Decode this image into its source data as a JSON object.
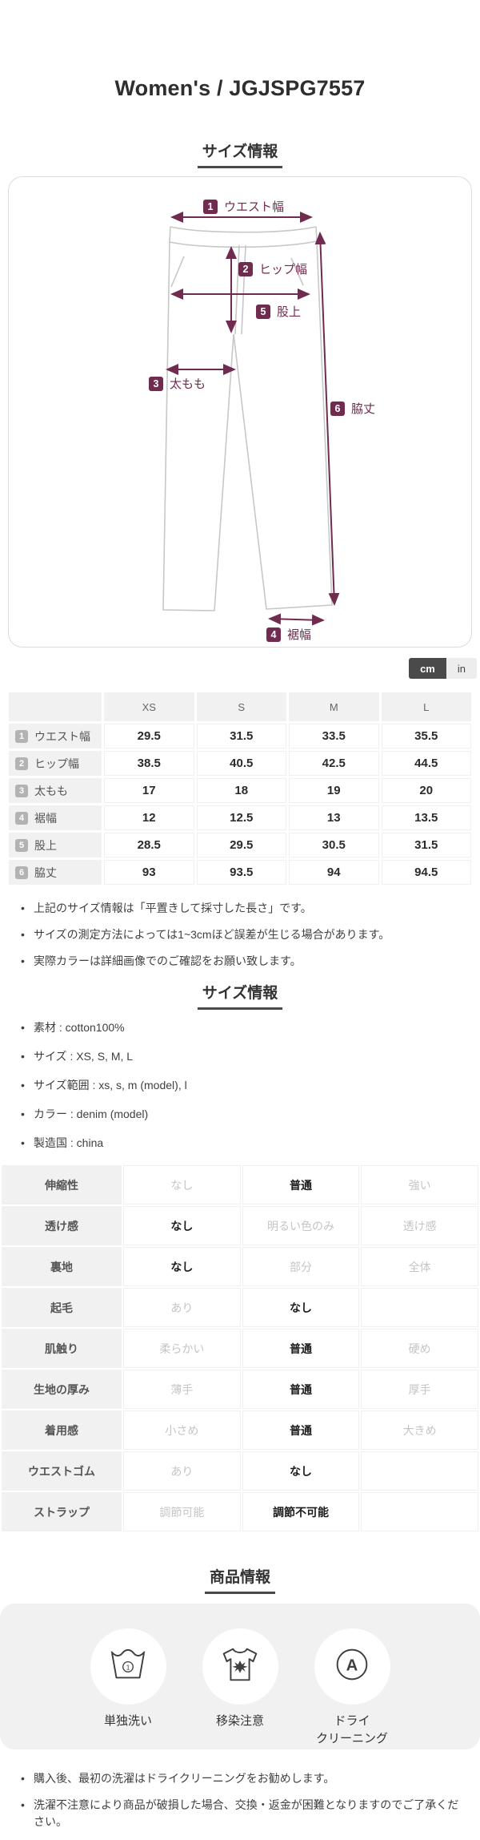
{
  "page": {
    "title": "Women's / JGJSPG7557"
  },
  "accent_color": "#702c4f",
  "size_section": {
    "heading": "サイズ情報",
    "diagram": {
      "labels": [
        {
          "num": "1",
          "text": "ウエスト幅"
        },
        {
          "num": "2",
          "text": "ヒップ幅"
        },
        {
          "num": "3",
          "text": "太もも"
        },
        {
          "num": "4",
          "text": "裾幅"
        },
        {
          "num": "5",
          "text": "股上"
        },
        {
          "num": "6",
          "text": "脇丈"
        }
      ]
    },
    "unit_toggle": {
      "cm": "cm",
      "in": "in",
      "selected": "cm"
    },
    "table": {
      "columns": [
        "XS",
        "S",
        "M",
        "L"
      ],
      "rows": [
        {
          "num": "1",
          "label": "ウエスト幅",
          "values": [
            "29.5",
            "31.5",
            "33.5",
            "35.5"
          ]
        },
        {
          "num": "2",
          "label": "ヒップ幅",
          "values": [
            "38.5",
            "40.5",
            "42.5",
            "44.5"
          ]
        },
        {
          "num": "3",
          "label": "太もも",
          "values": [
            "17",
            "18",
            "19",
            "20"
          ]
        },
        {
          "num": "4",
          "label": "裾幅",
          "values": [
            "12",
            "12.5",
            "13",
            "13.5"
          ]
        },
        {
          "num": "5",
          "label": "股上",
          "values": [
            "28.5",
            "29.5",
            "30.5",
            "31.5"
          ]
        },
        {
          "num": "6",
          "label": "脇丈",
          "values": [
            "93",
            "93.5",
            "94",
            "94.5"
          ]
        }
      ]
    },
    "notes": [
      "上記のサイズ情報は「平置きして採寸した長さ」です。",
      "サイズの測定方法によっては1~3cmほど誤差が生じる場合があります。",
      "実際カラーは詳細画像でのご確認をお願い致します。"
    ]
  },
  "detail_section": {
    "heading": "サイズ情報",
    "bullets": [
      "素材 : cotton100%",
      "サイズ : XS, S, M, L",
      "サイズ範囲 : xs, s, m (model), l",
      "カラー : denim (model)",
      "製造国 : china"
    ],
    "properties": [
      {
        "label": "伸縮性",
        "options": [
          "なし",
          "普通",
          "強い"
        ],
        "selected": 1
      },
      {
        "label": "透け感",
        "options": [
          "なし",
          "明るい色のみ",
          "透け感"
        ],
        "selected": 0
      },
      {
        "label": "裏地",
        "options": [
          "なし",
          "部分",
          "全体"
        ],
        "selected": 0
      },
      {
        "label": "起毛",
        "options": [
          "あり",
          "なし",
          ""
        ],
        "selected": 1
      },
      {
        "label": "肌触り",
        "options": [
          "柔らかい",
          "普通",
          "硬め"
        ],
        "selected": 1
      },
      {
        "label": "生地の厚み",
        "options": [
          "薄手",
          "普通",
          "厚手"
        ],
        "selected": 1
      },
      {
        "label": "着用感",
        "options": [
          "小さめ",
          "普通",
          "大きめ"
        ],
        "selected": 1
      },
      {
        "label": "ウエストゴム",
        "options": [
          "あり",
          "なし",
          ""
        ],
        "selected": 1
      },
      {
        "label": "ストラップ",
        "options": [
          "調節可能",
          "調節不可能",
          ""
        ],
        "selected": 1
      }
    ]
  },
  "product_section": {
    "heading": "商品情報",
    "care": [
      {
        "icon": "wash-separately-icon",
        "label": "単独洗い"
      },
      {
        "icon": "color-transfer-icon",
        "label": "移染注意"
      },
      {
        "icon": "dry-cleaning-icon",
        "label": "ドライ\nクリーニング"
      }
    ],
    "notes": [
      "購入後、最初の洗濯はドライクリーニングをお勧めします。",
      "洗濯不注意により商品が破損した場合、交換・返金が困難となりますのでご了承ください。"
    ]
  }
}
